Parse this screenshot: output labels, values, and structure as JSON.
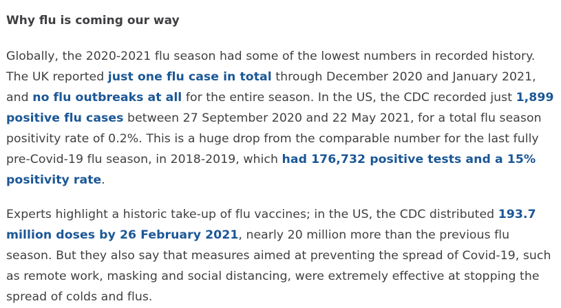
{
  "heading": "Why flu is coming our way",
  "paragraphs": [
    {
      "segments": [
        {
          "text": "Globally, the 2020-2021 flu season had some of the lowest numbers in recorded history. The UK reported ",
          "link": false
        },
        {
          "text": "just one flu case in total",
          "link": true,
          "name": "link-one-flu-case"
        },
        {
          "text": " through December 2020 and January 2021, and ",
          "link": false
        },
        {
          "text": "no flu outbreaks at all",
          "link": true,
          "name": "link-no-flu-outbreaks"
        },
        {
          "text": " for the entire season. In the US, the CDC recorded just ",
          "link": false
        },
        {
          "text": "1,899 positive flu cases",
          "link": true,
          "name": "link-positive-flu-cases"
        },
        {
          "text": " between 27 September 2020 and 22 May 2021, for a total flu season positivity rate of 0.2%. This is a huge drop from the comparable number for the last fully pre-Covid-19 flu season, in 2018-2019, which ",
          "link": false
        },
        {
          "text": "had 176,732 positive tests and a 15% positivity rate",
          "link": true,
          "name": "link-positive-tests-rate"
        },
        {
          "text": ".",
          "link": false
        }
      ]
    },
    {
      "segments": [
        {
          "text": "Experts highlight a historic take-up of flu vaccines; in the US, the CDC distributed ",
          "link": false
        },
        {
          "text": "193.7 million doses by 26 February 2021",
          "link": true,
          "name": "link-vaccine-doses"
        },
        {
          "text": ", nearly 20 million more than the previous flu season. But they also say that measures aimed at preventing the spread of Covid-19, such as remote work, masking and social distancing, were extremely effective at stopping the spread of colds and flus.",
          "link": false
        }
      ]
    }
  ],
  "colors": {
    "text": "#3f3f42",
    "link": "#1b5796",
    "background": "#ffffff"
  }
}
